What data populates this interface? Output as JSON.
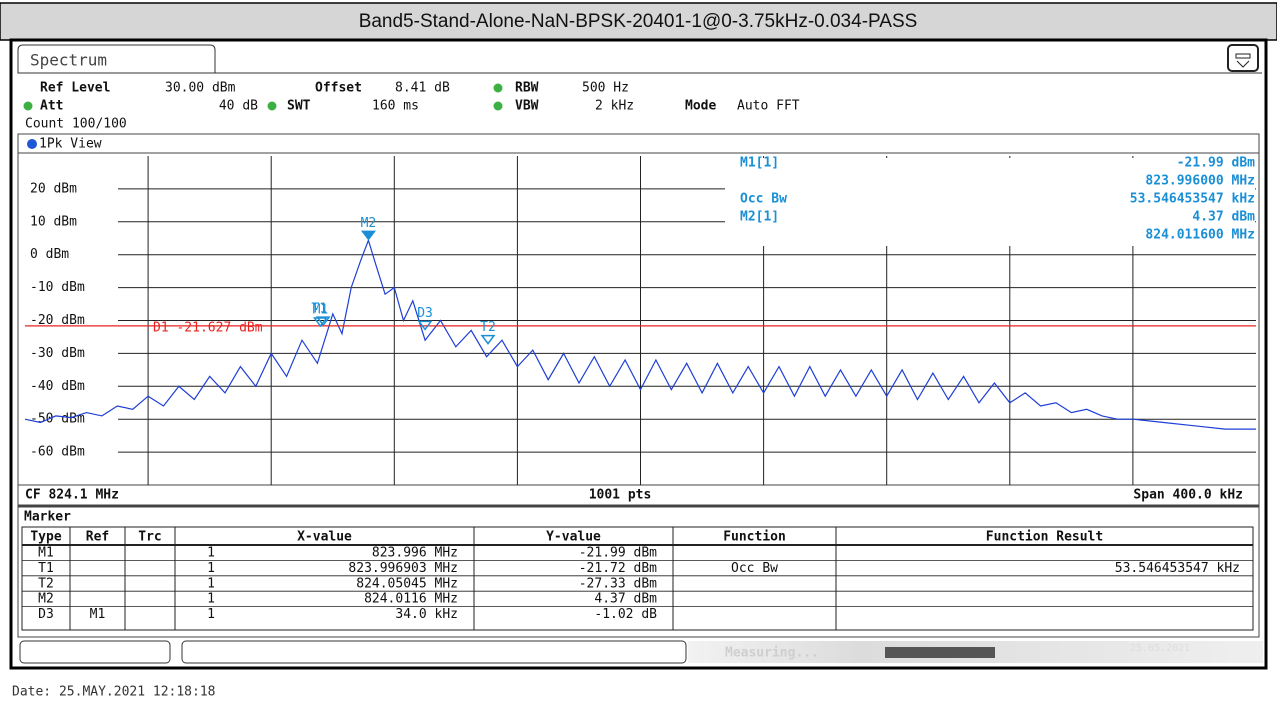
{
  "title": "Band5-Stand-Alone-NaN-BPSK-20401-1@0-3.75kHz-0.034-PASS",
  "tab": "Spectrum",
  "settings": [
    {
      "label": "Ref Level",
      "value": "30.00 dBm"
    },
    {
      "label": "Offset",
      "value": "8.41 dB"
    },
    {
      "label": "RBW",
      "value": "500 Hz"
    },
    {
      "label": "Att",
      "value": "40 dB"
    },
    {
      "label": "SWT",
      "value": "160 ms"
    },
    {
      "label": "VBW",
      "value": "2 kHz"
    },
    {
      "label": "Mode",
      "value": "Auto FFT"
    }
  ],
  "count": "Count 100/100",
  "chart_data": {
    "type": "line",
    "view": "1Pk View",
    "color": "#1e3fd6",
    "x": [
      823.9,
      823.905,
      823.91,
      823.915,
      823.92,
      823.925,
      823.93,
      823.935,
      823.94,
      823.945,
      823.95,
      823.955,
      823.96,
      823.965,
      823.97,
      823.975,
      823.98,
      823.985,
      823.99,
      823.995,
      824.0,
      824.003,
      824.006,
      824.009,
      824.0116,
      824.014,
      824.017,
      824.02,
      824.023,
      824.026,
      824.03,
      824.035,
      824.04,
      824.045,
      824.05,
      824.055,
      824.06,
      824.065,
      824.07,
      824.075,
      824.08,
      824.085,
      824.09,
      824.095,
      824.1,
      824.105,
      824.11,
      824.115,
      824.12,
      824.125,
      824.13,
      824.135,
      824.14,
      824.145,
      824.15,
      824.155,
      824.16,
      824.165,
      824.17,
      824.175,
      824.18,
      824.185,
      824.19,
      824.195,
      824.2,
      824.205,
      824.21,
      824.215,
      824.22,
      824.225,
      824.23,
      824.235,
      824.24,
      824.245,
      824.25,
      824.255,
      824.26,
      824.27,
      824.28,
      824.29,
      824.3
    ],
    "values": [
      -50,
      -51,
      -49,
      -49.5,
      -48,
      -49,
      -46,
      -47,
      -43,
      -46,
      -40,
      -44,
      -37,
      -42,
      -34,
      -40,
      -30,
      -37,
      -26,
      -33,
      -18,
      -24,
      -10,
      -2,
      4.37,
      -3,
      -12,
      -10,
      -20,
      -14,
      -26,
      -20,
      -28,
      -23,
      -31,
      -26,
      -34,
      -29,
      -38,
      -30,
      -39,
      -31,
      -40,
      -32,
      -41,
      -32,
      -41,
      -33,
      -42,
      -33,
      -42,
      -34,
      -42,
      -34,
      -43,
      -34,
      -43,
      -35,
      -43,
      -35,
      -43,
      -35,
      -44,
      -36,
      -44,
      -37,
      -45,
      -39,
      -45,
      -42,
      -46,
      -45,
      -48,
      -47,
      -49,
      -50,
      -50,
      -51,
      -52,
      -53,
      -53
    ],
    "xlim": [
      823.9,
      824.3
    ],
    "ylim": [
      -70,
      30
    ],
    "yticks": [
      {
        "value": 20,
        "label": "20 dBm"
      },
      {
        "value": 10,
        "label": "10 dBm"
      },
      {
        "value": 0,
        "label": "0 dBm"
      },
      {
        "value": -10,
        "label": "-10 dBm"
      },
      {
        "value": -20,
        "label": "-20 dBm"
      },
      {
        "value": -30,
        "label": "-30 dBm"
      },
      {
        "value": -40,
        "label": "-40 dBm"
      },
      {
        "value": -50,
        "label": "-50 dBm"
      },
      {
        "value": -60,
        "label": "-60 dBm"
      }
    ],
    "grid": true,
    "display_line": {
      "label": "D1 -21.627 dBm",
      "value": -21.627,
      "color": "#e8231f"
    },
    "marker_color": "#1a8fd6",
    "markers": [
      {
        "label": "M1",
        "x": 823.996,
        "y": -21.99
      },
      {
        "label": "T1",
        "x": 823.996903,
        "y": -21.72
      },
      {
        "label": "D3",
        "x": 824.03,
        "y": -23.01
      },
      {
        "label": "T2",
        "x": 824.05045,
        "y": -27.33
      },
      {
        "label": "M2",
        "x": 824.0116,
        "y": 4.37
      }
    ],
    "info": [
      {
        "label": "M1[1]",
        "value": "-21.99 dBm"
      },
      {
        "value": "823.996000 MHz"
      },
      {
        "label": "Occ Bw",
        "value": "53.546453547 kHz"
      },
      {
        "label": "M2[1]",
        "value": "4.37 dBm"
      },
      {
        "value": "824.011600 MHz"
      }
    ],
    "footer": {
      "left": "CF 824.1 MHz",
      "center": "1001 pts",
      "right": "Span 400.0 kHz"
    }
  },
  "marker_table": {
    "title": "Marker",
    "headers": [
      "Type",
      "Ref",
      "Trc",
      "X-value",
      "Y-value",
      "Function",
      "Function Result"
    ],
    "rows": [
      [
        "M1",
        null,
        "1",
        "823.996 MHz",
        "-21.99 dBm",
        null,
        null
      ],
      [
        "T1",
        null,
        "1",
        "823.996903 MHz",
        "-21.72 dBm",
        "Occ Bw",
        "53.546453547 kHz"
      ],
      [
        "T2",
        null,
        "1",
        "824.05045 MHz",
        "-27.33 dBm",
        null,
        null
      ],
      [
        "M2",
        null,
        "1",
        "824.0116 MHz",
        "4.37 dBm",
        null,
        null
      ],
      [
        "D3",
        "M1",
        "1",
        "34.0 kHz",
        "-1.02 dB",
        null,
        null
      ]
    ]
  },
  "status": {
    "measuring": "Measuring...",
    "date": "25.05.2021"
  },
  "date": "Date: 25.MAY.2021  12:18:18"
}
